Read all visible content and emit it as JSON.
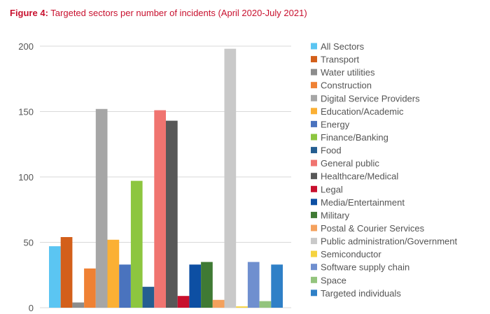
{
  "figure": {
    "label": "Figure 4:",
    "caption": "Targeted sectors per number of incidents (April 2020-July 2021)"
  },
  "chart_data": {
    "type": "bar",
    "title": "Figure 4: Targeted sectors per number of incidents (April 2020-July 2021)",
    "xlabel": "",
    "ylabel": "",
    "ylim": [
      0,
      200
    ],
    "yticks": [
      0,
      50,
      100,
      150,
      200
    ],
    "grid": true,
    "legend_position": "right",
    "categories": [
      "All Sectors",
      "Transport",
      "Water utilities",
      "Construction",
      "Digital Service Providers",
      "Education/Academic",
      "Energy",
      "Finance/Banking",
      "Food",
      "General public",
      "Healthcare/Medical",
      "Legal",
      "Media/Entertainment",
      "Military",
      "Postal & Courier Services",
      "Public administration/Government",
      "Semiconductor",
      "Software supply chain",
      "Space",
      "Targeted individuals"
    ],
    "values": [
      47,
      54,
      4,
      30,
      152,
      52,
      33,
      97,
      16,
      151,
      143,
      9,
      33,
      35,
      6,
      198,
      1,
      35,
      5,
      33
    ],
    "colors": [
      "#5bc5f2",
      "#d35f1a",
      "#8c8c8c",
      "#ef8134",
      "#a6a6a6",
      "#fbb034",
      "#4a73be",
      "#8dc63f",
      "#255e91",
      "#f07470",
      "#585858",
      "#c8102e",
      "#0d4fa3",
      "#3f7a34",
      "#f4a15d",
      "#c9c9c9",
      "#f5d33f",
      "#6f8fcf",
      "#93c47d",
      "#2f80c7"
    ]
  }
}
